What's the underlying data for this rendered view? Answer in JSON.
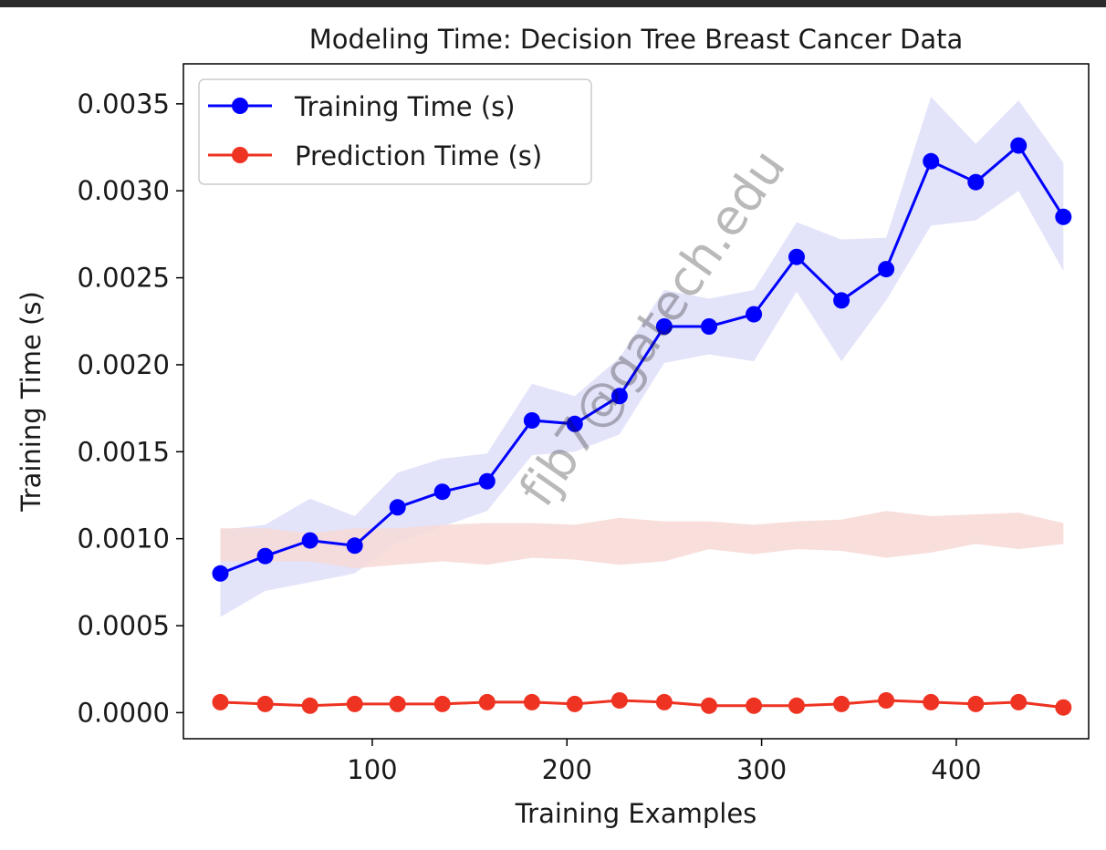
{
  "chart_data": {
    "type": "line",
    "title": "Modeling Time: Decision Tree Breast Cancer Data",
    "xlabel": "Training Examples",
    "ylabel": "Training Time (s)",
    "xlim": [
      3,
      468
    ],
    "ylim": [
      -0.00015,
      0.00373
    ],
    "xticks": [
      100,
      200,
      300,
      400
    ],
    "yticks": [
      0.0,
      0.0005,
      0.001,
      0.0015,
      0.002,
      0.0025,
      0.003,
      0.0035
    ],
    "ytick_labels": [
      "0.0000",
      "0.0005",
      "0.0010",
      "0.0015",
      "0.0020",
      "0.0025",
      "0.0030",
      "0.0035"
    ],
    "xtick_labels": [
      "100",
      "200",
      "300",
      "400"
    ],
    "grid": false,
    "legend_position": "top-left",
    "x": [
      22,
      45,
      68,
      91,
      113,
      136,
      159,
      182,
      204,
      227,
      250,
      273,
      296,
      318,
      341,
      364,
      387,
      410,
      432,
      455
    ],
    "series": [
      {
        "name": "Training Time (s)",
        "color": "#0000ff",
        "band_color": "#ccccf5",
        "values": [
          0.0008,
          0.0009,
          0.00099,
          0.00096,
          0.00118,
          0.00127,
          0.00133,
          0.00168,
          0.00166,
          0.00182,
          0.00222,
          0.00222,
          0.00229,
          0.00262,
          0.00237,
          0.00255,
          0.00317,
          0.00305,
          0.00326,
          0.00285
        ],
        "upper": [
          0.00105,
          0.00108,
          0.00123,
          0.00113,
          0.00138,
          0.00146,
          0.00149,
          0.00189,
          0.00182,
          0.00204,
          0.00243,
          0.00238,
          0.00243,
          0.00282,
          0.00272,
          0.00273,
          0.00354,
          0.00327,
          0.00352,
          0.00316
        ],
        "lower": [
          0.00055,
          0.0007,
          0.00075,
          0.0008,
          0.00098,
          0.00107,
          0.00116,
          0.00148,
          0.0015,
          0.0016,
          0.00201,
          0.00206,
          0.00202,
          0.00242,
          0.00202,
          0.00237,
          0.0028,
          0.00283,
          0.003,
          0.00254
        ]
      },
      {
        "name": "Prediction Time (s)",
        "color": "#ee3322",
        "band_color": "#f7d9d6",
        "values": [
          6e-05,
          5e-05,
          4e-05,
          5e-05,
          5e-05,
          5e-05,
          6e-05,
          6e-05,
          5e-05,
          7e-05,
          6e-05,
          4e-05,
          4e-05,
          4e-05,
          5e-05,
          7e-05,
          6e-05,
          5e-05,
          6e-05,
          3e-05
        ],
        "upper": [
          0.00106,
          0.00106,
          0.00103,
          0.00106,
          0.00106,
          0.00108,
          0.00109,
          0.00109,
          0.00108,
          0.00112,
          0.0011,
          0.0011,
          0.00108,
          0.0011,
          0.00111,
          0.00116,
          0.00113,
          0.00114,
          0.00115,
          0.00109
        ],
        "lower": [
          0.00087,
          0.00087,
          0.00087,
          0.00083,
          0.00085,
          0.00087,
          0.00085,
          0.00089,
          0.00088,
          0.00085,
          0.00087,
          0.00094,
          0.00091,
          0.00094,
          0.00093,
          0.00089,
          0.00092,
          0.00097,
          0.00094,
          0.00097
        ]
      }
    ]
  },
  "watermark": "fjb7@gatech.edu"
}
